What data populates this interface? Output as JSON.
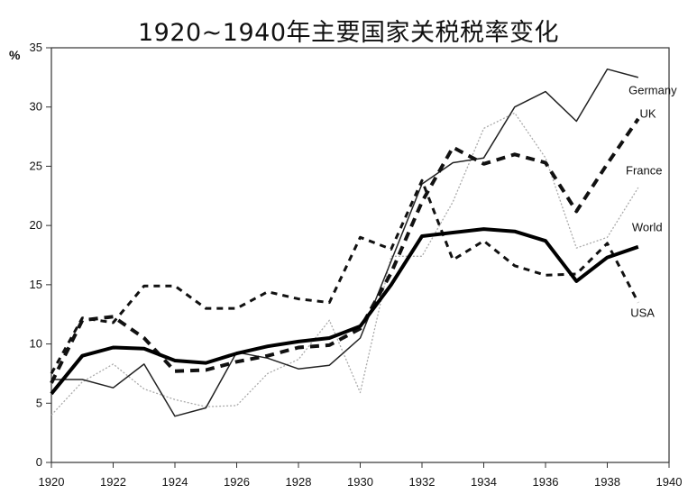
{
  "chart_data": {
    "type": "line",
    "title": "1920~1940年主要国家关税税率变化",
    "ylabel": "%",
    "xlabel": "",
    "xlim": [
      1920,
      1940
    ],
    "ylim": [
      0,
      35
    ],
    "x_ticks": [
      "1920",
      "1922",
      "1924",
      "1926",
      "1928",
      "1930",
      "1932",
      "1934",
      "1936",
      "1938",
      "1940"
    ],
    "y_ticks": [
      "0",
      "5",
      "10",
      "15",
      "20",
      "25",
      "30",
      "35"
    ],
    "series": [
      {
        "name": "Germany",
        "color": "#222222",
        "style": "thin-solid",
        "points": [
          [
            1920,
            7.0
          ],
          [
            1921,
            7.0
          ],
          [
            1922,
            6.3
          ],
          [
            1923,
            8.3
          ],
          [
            1924,
            3.9
          ],
          [
            1925,
            4.6
          ],
          [
            1926,
            9.3
          ],
          [
            1927,
            8.8
          ],
          [
            1928,
            7.9
          ],
          [
            1929,
            8.2
          ],
          [
            1930,
            10.5
          ],
          [
            1931,
            17.0
          ],
          [
            1932,
            23.5
          ],
          [
            1933,
            25.3
          ],
          [
            1934,
            25.7
          ],
          [
            1935,
            30.0
          ],
          [
            1936,
            31.3
          ],
          [
            1937,
            28.8
          ],
          [
            1938,
            33.2
          ],
          [
            1939,
            32.5
          ]
        ]
      },
      {
        "name": "UK",
        "color": "#111111",
        "style": "bold-dashed",
        "points": [
          [
            1920,
            6.7
          ],
          [
            1921,
            12.0
          ],
          [
            1922,
            12.3
          ],
          [
            1923,
            10.5
          ],
          [
            1924,
            7.7
          ],
          [
            1925,
            7.8
          ],
          [
            1926,
            8.5
          ],
          [
            1927,
            9.0
          ],
          [
            1928,
            9.7
          ],
          [
            1929,
            9.9
          ],
          [
            1930,
            11.3
          ],
          [
            1931,
            16.0
          ],
          [
            1932,
            22.0
          ],
          [
            1933,
            26.6
          ],
          [
            1934,
            25.2
          ],
          [
            1935,
            26.0
          ],
          [
            1936,
            25.3
          ],
          [
            1937,
            21.2
          ],
          [
            1938,
            25.2
          ],
          [
            1939,
            29.0
          ]
        ]
      },
      {
        "name": "France",
        "color": "#aaaaaa",
        "style": "thin-dotted",
        "points": [
          [
            1920,
            4.0
          ],
          [
            1921,
            6.8
          ],
          [
            1922,
            8.3
          ],
          [
            1923,
            6.2
          ],
          [
            1924,
            5.3
          ],
          [
            1925,
            4.7
          ],
          [
            1926,
            4.8
          ],
          [
            1927,
            7.5
          ],
          [
            1928,
            8.7
          ],
          [
            1929,
            12.0
          ],
          [
            1930,
            5.9
          ],
          [
            1931,
            17.4
          ],
          [
            1932,
            17.4
          ],
          [
            1933,
            22.0
          ],
          [
            1934,
            28.2
          ],
          [
            1935,
            29.5
          ],
          [
            1936,
            25.7
          ],
          [
            1937,
            18.1
          ],
          [
            1938,
            19.0
          ],
          [
            1939,
            23.2
          ]
        ]
      },
      {
        "name": "World",
        "color": "#000000",
        "style": "thick-solid",
        "points": [
          [
            1920,
            5.8
          ],
          [
            1921,
            9.0
          ],
          [
            1922,
            9.7
          ],
          [
            1923,
            9.6
          ],
          [
            1924,
            8.6
          ],
          [
            1925,
            8.4
          ],
          [
            1926,
            9.2
          ],
          [
            1927,
            9.8
          ],
          [
            1928,
            10.2
          ],
          [
            1929,
            10.5
          ],
          [
            1930,
            11.5
          ],
          [
            1931,
            15.0
          ],
          [
            1932,
            19.1
          ],
          [
            1933,
            19.4
          ],
          [
            1934,
            19.7
          ],
          [
            1935,
            19.5
          ],
          [
            1936,
            18.7
          ],
          [
            1937,
            15.3
          ],
          [
            1938,
            17.3
          ],
          [
            1939,
            18.2
          ]
        ]
      },
      {
        "name": "USA",
        "color": "#111111",
        "style": "dashed",
        "points": [
          [
            1920,
            7.5
          ],
          [
            1921,
            12.2
          ],
          [
            1922,
            11.8
          ],
          [
            1923,
            14.9
          ],
          [
            1924,
            14.9
          ],
          [
            1925,
            13.0
          ],
          [
            1926,
            13.0
          ],
          [
            1927,
            14.4
          ],
          [
            1928,
            13.8
          ],
          [
            1929,
            13.5
          ],
          [
            1930,
            19.0
          ],
          [
            1931,
            18.0
          ],
          [
            1932,
            23.8
          ],
          [
            1933,
            17.1
          ],
          [
            1934,
            18.7
          ],
          [
            1935,
            16.6
          ],
          [
            1936,
            15.8
          ],
          [
            1937,
            15.9
          ],
          [
            1938,
            18.5
          ],
          [
            1939,
            13.5
          ]
        ]
      }
    ],
    "grid": false,
    "legend": "inline labels at right"
  }
}
